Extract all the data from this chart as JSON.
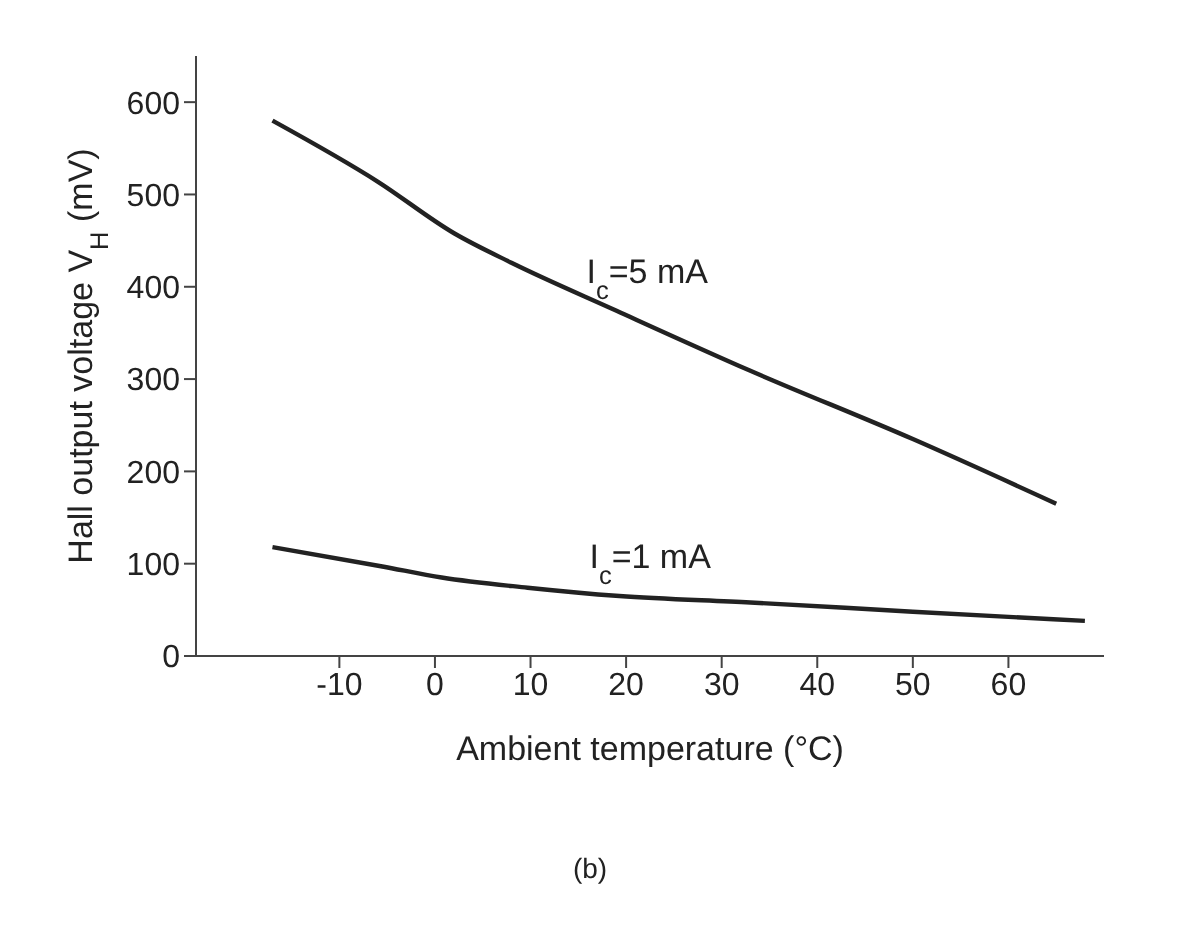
{
  "chart_data": {
    "type": "line",
    "xlabel": "Ambient temperature (°C)",
    "ylabel": "Hall output voltage V$_{H}$ (mV)",
    "xlim": [
      -25,
      70
    ],
    "xticks": [
      -10,
      0,
      10,
      20,
      30,
      40,
      50,
      60
    ],
    "ylim": [
      0,
      650
    ],
    "yticks": [
      0,
      100,
      200,
      300,
      400,
      500,
      600
    ],
    "grid": false,
    "legend": false,
    "marker": "none",
    "line_style": "solid",
    "series": [
      {
        "color": "#222222",
        "x": [
          -17,
          -6,
          2,
          8,
          19,
          33,
          50,
          65
        ],
        "values": [
          580,
          514,
          458,
          426,
          374,
          309,
          235,
          165
        ]
      },
      {
        "color": "#222222",
        "x": [
          -17,
          -5.5,
          0.7,
          9.7,
          19.3,
          33,
          50,
          68
        ],
        "values": [
          118,
          97,
          85,
          74,
          65,
          58,
          48,
          38
        ]
      }
    ],
    "annotations": [
      "I$_{c}$=5 mA",
      "I$_{c}$=1 mA",
      "(b)"
    ]
  }
}
